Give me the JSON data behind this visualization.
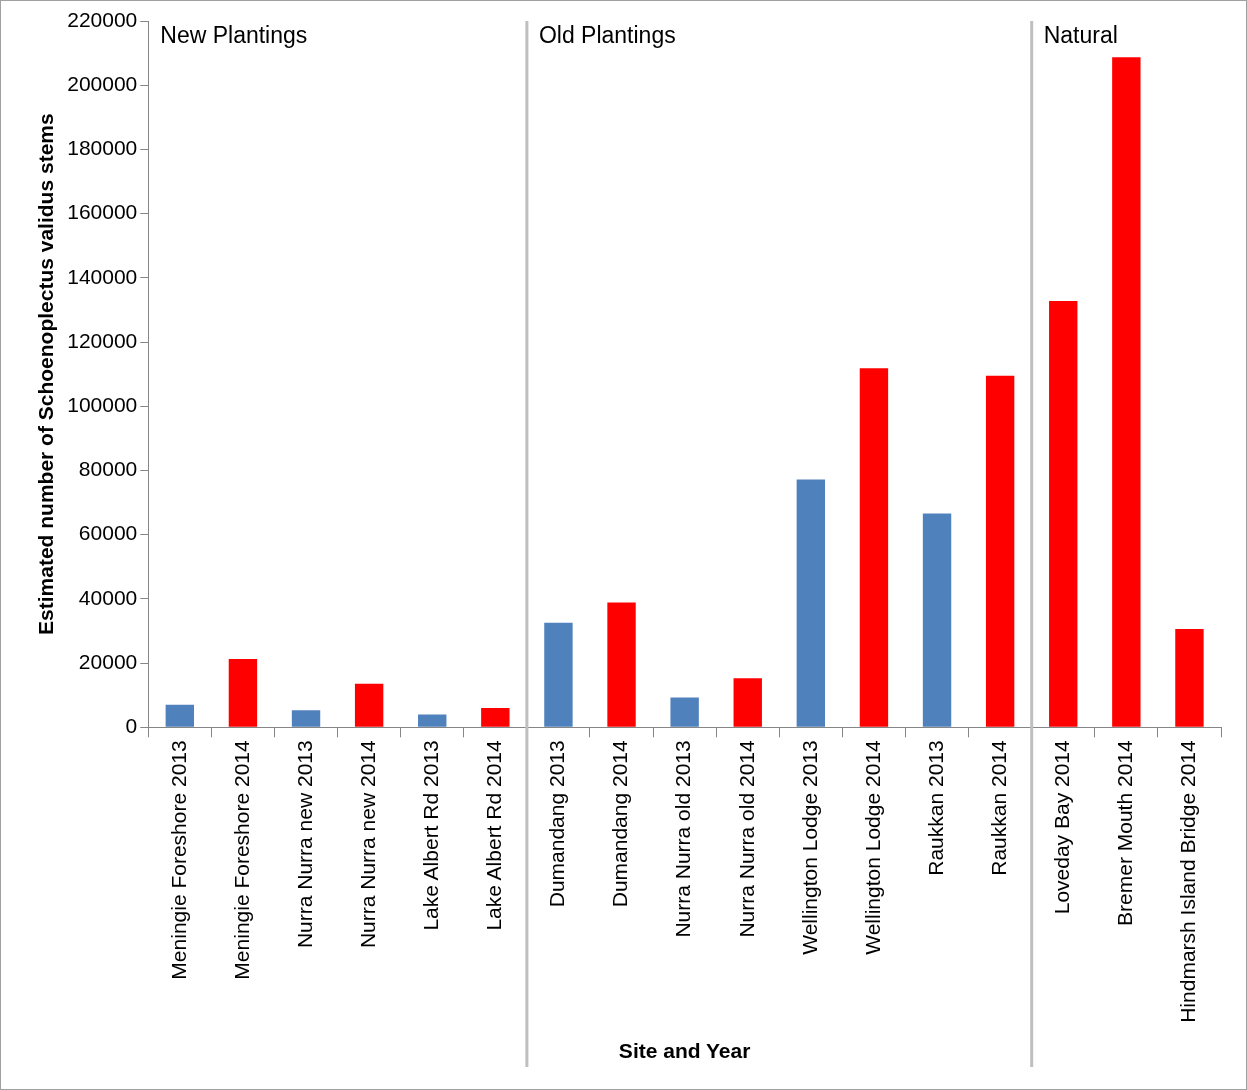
{
  "chart_data": {
    "type": "bar",
    "xlabel": "Site and Year",
    "ylabel": "Estimated number of Schoenoplectus validus stems",
    "categories": [
      "Meningie Foreshore 2013",
      "Meningie Foreshore 2014",
      "Nurra Nurra new 2013",
      "Nurra Nurra new 2014",
      "Lake Albert Rd 2013",
      "Lake Albert Rd 2014",
      "Dumandang 2013",
      "Dumandang 2014",
      "Nurra Nurra old 2013",
      "Nurra Nurra old 2014",
      "Wellington Lodge 2013",
      "Wellington Lodge 2014",
      "Raukkan 2013",
      "Raukkan 2014",
      "Loveday Bay 2014",
      "Bremer Mouth 2014",
      "Hindmarsh Island Bridge 2014"
    ],
    "values": [
      7000,
      21300,
      5300,
      13600,
      4000,
      6000,
      32600,
      38900,
      9300,
      15300,
      77200,
      111800,
      66600,
      109500,
      132800,
      208700,
      30600
    ],
    "colors": [
      "#4f81bd",
      "#ff0000",
      "#4f81bd",
      "#ff0000",
      "#4f81bd",
      "#ff0000",
      "#4f81bd",
      "#ff0000",
      "#4f81bd",
      "#ff0000",
      "#4f81bd",
      "#ff0000",
      "#4f81bd",
      "#ff0000",
      "#ff0000",
      "#ff0000",
      "#ff0000"
    ],
    "ylim": [
      0,
      220000
    ],
    "yticks": [
      0,
      20000,
      40000,
      60000,
      80000,
      100000,
      120000,
      140000,
      160000,
      180000,
      200000,
      220000
    ],
    "annotations": [
      "New Plantings",
      "Old Plantings",
      "Natural"
    ],
    "grid": false,
    "legend": false
  }
}
